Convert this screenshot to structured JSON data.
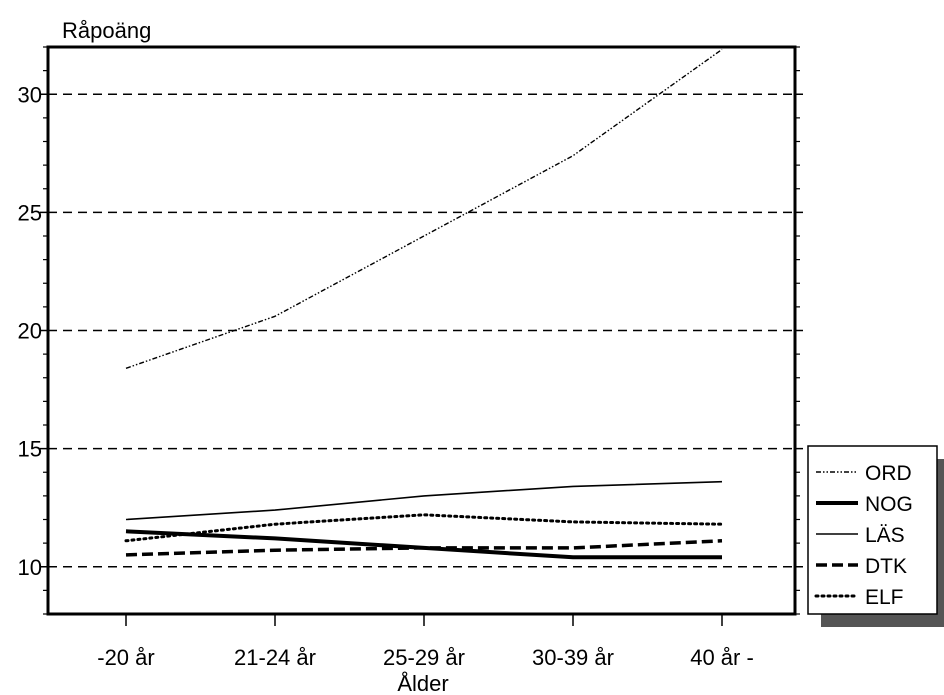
{
  "chart_data": {
    "type": "line",
    "xlabel": "Ålder",
    "ylabel": "Råpoäng",
    "categories": [
      "-20 år",
      "21-24 år",
      "25-29 år",
      "30-39 år",
      "40 år -"
    ],
    "ylim": [
      8.0,
      32.0
    ],
    "yticks": [
      10,
      15,
      20,
      25,
      30
    ],
    "grid": "horizontal dashed",
    "legend_position": "right",
    "series": [
      {
        "name": "ORD",
        "values": [
          18.4,
          20.6,
          24.0,
          27.4,
          31.9
        ],
        "style": "dashdotdot",
        "color": "#000000"
      },
      {
        "name": "NOG",
        "values": [
          11.5,
          11.2,
          10.8,
          10.4,
          10.4
        ],
        "style": "thick",
        "color": "#000000"
      },
      {
        "name": "LÄS",
        "values": [
          12.0,
          12.4,
          13.0,
          13.4,
          13.6
        ],
        "style": "thin",
        "color": "#000000"
      },
      {
        "name": "DTK",
        "values": [
          10.5,
          10.7,
          10.8,
          10.8,
          11.1
        ],
        "style": "dashed",
        "color": "#000000"
      },
      {
        "name": "ELF",
        "values": [
          11.1,
          11.8,
          12.2,
          11.9,
          11.8
        ],
        "style": "dotted",
        "color": "#000000"
      }
    ]
  }
}
